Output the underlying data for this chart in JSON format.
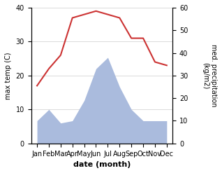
{
  "months": [
    "Jan",
    "Feb",
    "Mar",
    "Apr",
    "May",
    "Jun",
    "Jul",
    "Aug",
    "Sep",
    "Oct",
    "Nov",
    "Dec"
  ],
  "temperature": [
    17,
    22,
    26,
    37,
    38,
    39,
    38,
    37,
    31,
    31,
    24,
    23
  ],
  "precipitation": [
    10,
    15,
    9,
    10,
    19,
    33,
    38,
    25,
    15,
    10,
    10,
    10
  ],
  "temp_color": "#cc3333",
  "precip_color": "#aabbdd",
  "ylabel_left": "max temp (C)",
  "ylabel_right": "med. precipitation\n(kg/m2)",
  "xlabel": "date (month)",
  "ylim_left": [
    0,
    40
  ],
  "ylim_right": [
    0,
    60
  ],
  "yticks_left": [
    0,
    10,
    20,
    30,
    40
  ],
  "yticks_right": [
    0,
    10,
    20,
    30,
    40,
    50,
    60
  ],
  "grid_color": "#cccccc"
}
